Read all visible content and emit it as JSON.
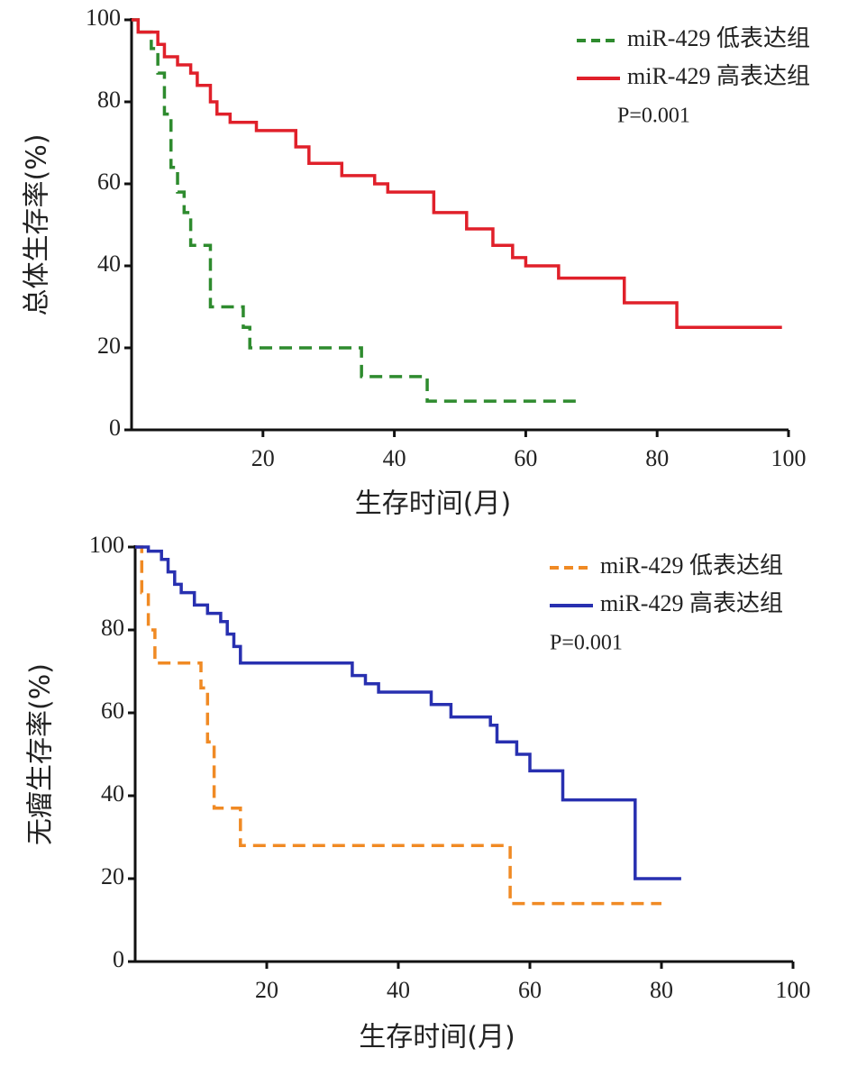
{
  "chart_data": [
    {
      "type": "line",
      "step": true,
      "y_label": "总体生存率(%)",
      "x_label": "生存时间(月)",
      "xlim": [
        0,
        100
      ],
      "ylim": [
        0,
        100
      ],
      "xticks": [
        20,
        40,
        60,
        80,
        100
      ],
      "yticks": [
        0,
        20,
        40,
        60,
        80,
        100
      ],
      "annotation": "P=0.001",
      "series": [
        {
          "name": "miR-429 低表达组",
          "color": "#2e8b2e",
          "line_style": "dashed",
          "x": [
            0,
            1,
            3,
            4,
            5,
            6,
            7,
            8,
            9,
            12,
            17,
            18,
            35,
            45,
            68
          ],
          "values": [
            100,
            97,
            93,
            87,
            77,
            64,
            58,
            53,
            45,
            30,
            25,
            20,
            13,
            7,
            7
          ]
        },
        {
          "name": "miR-429 高表达组",
          "color": "#e0202a",
          "line_style": "solid",
          "x": [
            0,
            1,
            4,
            5,
            7,
            9,
            10,
            12,
            13,
            15,
            19,
            25,
            27,
            32,
            37,
            39,
            46,
            51,
            55,
            58,
            60,
            65,
            75,
            83,
            99
          ],
          "values": [
            100,
            97,
            94,
            91,
            89,
            87,
            84,
            80,
            77,
            75,
            73,
            69,
            65,
            62,
            60,
            58,
            53,
            49,
            45,
            42,
            40,
            37,
            31,
            25,
            25
          ]
        }
      ]
    },
    {
      "type": "line",
      "step": true,
      "y_label": "无瘤生存率(%)",
      "x_label": "生存时间(月)",
      "xlim": [
        0,
        100
      ],
      "ylim": [
        0,
        100
      ],
      "xticks": [
        20,
        40,
        60,
        80,
        100
      ],
      "yticks": [
        0,
        20,
        40,
        60,
        80,
        100
      ],
      "annotation": "P=0.001",
      "series": [
        {
          "name": "miR-429 低表达组",
          "color": "#f08a24",
          "line_style": "dashed",
          "x": [
            0,
            1,
            2,
            3,
            10,
            11,
            12,
            16,
            57,
            80
          ],
          "values": [
            100,
            89,
            80,
            72,
            66,
            53,
            37,
            28,
            14,
            14
          ]
        },
        {
          "name": "miR-429 高表达组",
          "color": "#2830b0",
          "line_style": "solid",
          "x": [
            0,
            2,
            4,
            5,
            6,
            7,
            9,
            11,
            13,
            14,
            15,
            16,
            33,
            35,
            37,
            45,
            48,
            54,
            55,
            58,
            60,
            65,
            76,
            83
          ],
          "values": [
            100,
            99,
            97,
            94,
            91,
            89,
            86,
            84,
            82,
            79,
            76,
            72,
            69,
            67,
            65,
            62,
            59,
            57,
            53,
            50,
            46,
            39,
            20,
            20
          ]
        }
      ]
    }
  ]
}
